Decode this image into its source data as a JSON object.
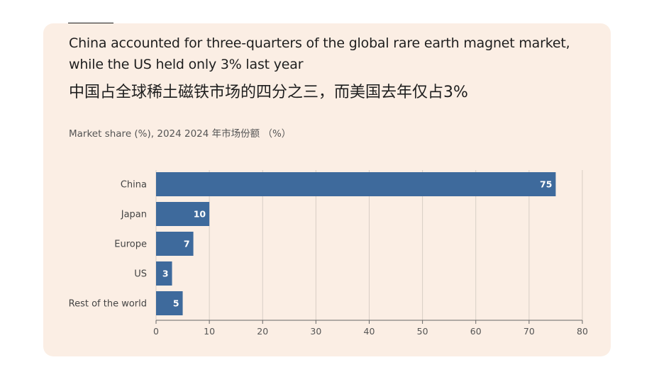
{
  "chart_data": {
    "type": "bar",
    "orientation": "horizontal",
    "title": "China accounted for three-quarters of the global rare earth magnet market, while the US held only 3% last year",
    "title_zh": "中国占全球稀土磁铁市场的四分之三，而美国去年仅占3%",
    "subtitle": "Market share (%), 2024  2024 年市场份额 （%）",
    "categories": [
      "China",
      "Japan",
      "Europe",
      "US",
      "Rest of the world"
    ],
    "values": [
      75,
      10,
      7,
      3,
      5
    ],
    "xlim": [
      0,
      80
    ],
    "xticks": [
      0,
      10,
      20,
      30,
      40,
      50,
      60,
      70,
      80
    ],
    "grid": true,
    "bar_color": "#3e6a9c",
    "grid_color": "#d8cdc5",
    "background_color": "#fbeee4"
  }
}
